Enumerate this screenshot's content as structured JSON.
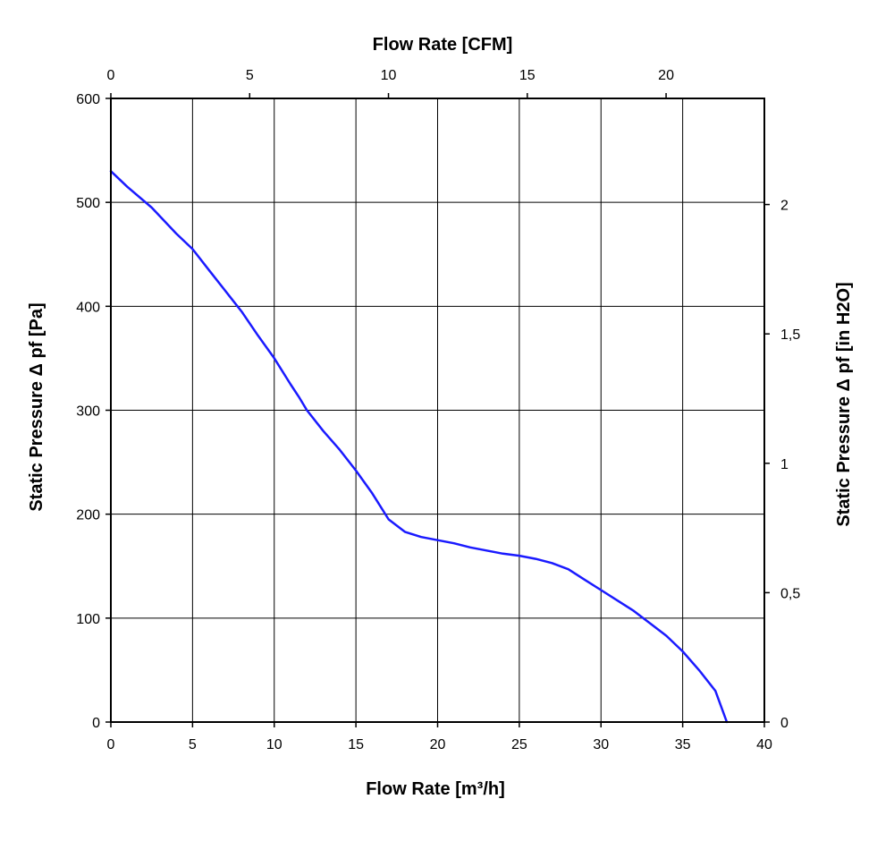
{
  "chart_data": {
    "type": "line",
    "x_bottom": {
      "label": "Flow Rate [m³/h]",
      "range": [
        0,
        40
      ],
      "ticks": [
        0,
        5,
        10,
        15,
        20,
        25,
        30,
        35,
        40
      ]
    },
    "x_top": {
      "label": "Flow Rate [CFM]",
      "range": [
        0,
        23.54
      ],
      "ticks": [
        0,
        5,
        10,
        15,
        20
      ]
    },
    "y_left": {
      "label": "Static Pressure Δ pf [Pa]",
      "range": [
        0,
        600
      ],
      "ticks": [
        0,
        100,
        200,
        300,
        400,
        500,
        600
      ]
    },
    "y_right": {
      "label": "Static Pressure Δ pf [in H2O]",
      "range": [
        0,
        2.41
      ],
      "ticks": [
        0,
        0.5,
        1,
        1.5,
        2
      ],
      "tick_labels": [
        "0",
        "0,5",
        "1",
        "1,5",
        "2"
      ]
    },
    "grid": true,
    "series": [
      {
        "color": "#1a1aff",
        "x": [
          0,
          1,
          2.5,
          4,
          5,
          6,
          7,
          8,
          9,
          10,
          11,
          11.5,
          12,
          13,
          14,
          15,
          16,
          17,
          18,
          19,
          20,
          21,
          22,
          23,
          24,
          25,
          26,
          27,
          28,
          29,
          30,
          31,
          32,
          33,
          34,
          35,
          36,
          37,
          37.7
        ],
        "y": [
          530,
          515,
          495,
          470,
          455,
          435,
          415,
          395,
          372,
          350,
          325,
          313,
          300,
          280,
          262,
          242,
          220,
          195,
          183,
          178,
          175,
          172,
          168,
          165,
          162,
          160,
          157,
          153,
          147,
          137,
          127,
          117,
          107,
          95,
          83,
          68,
          50,
          30,
          0
        ]
      }
    ]
  }
}
